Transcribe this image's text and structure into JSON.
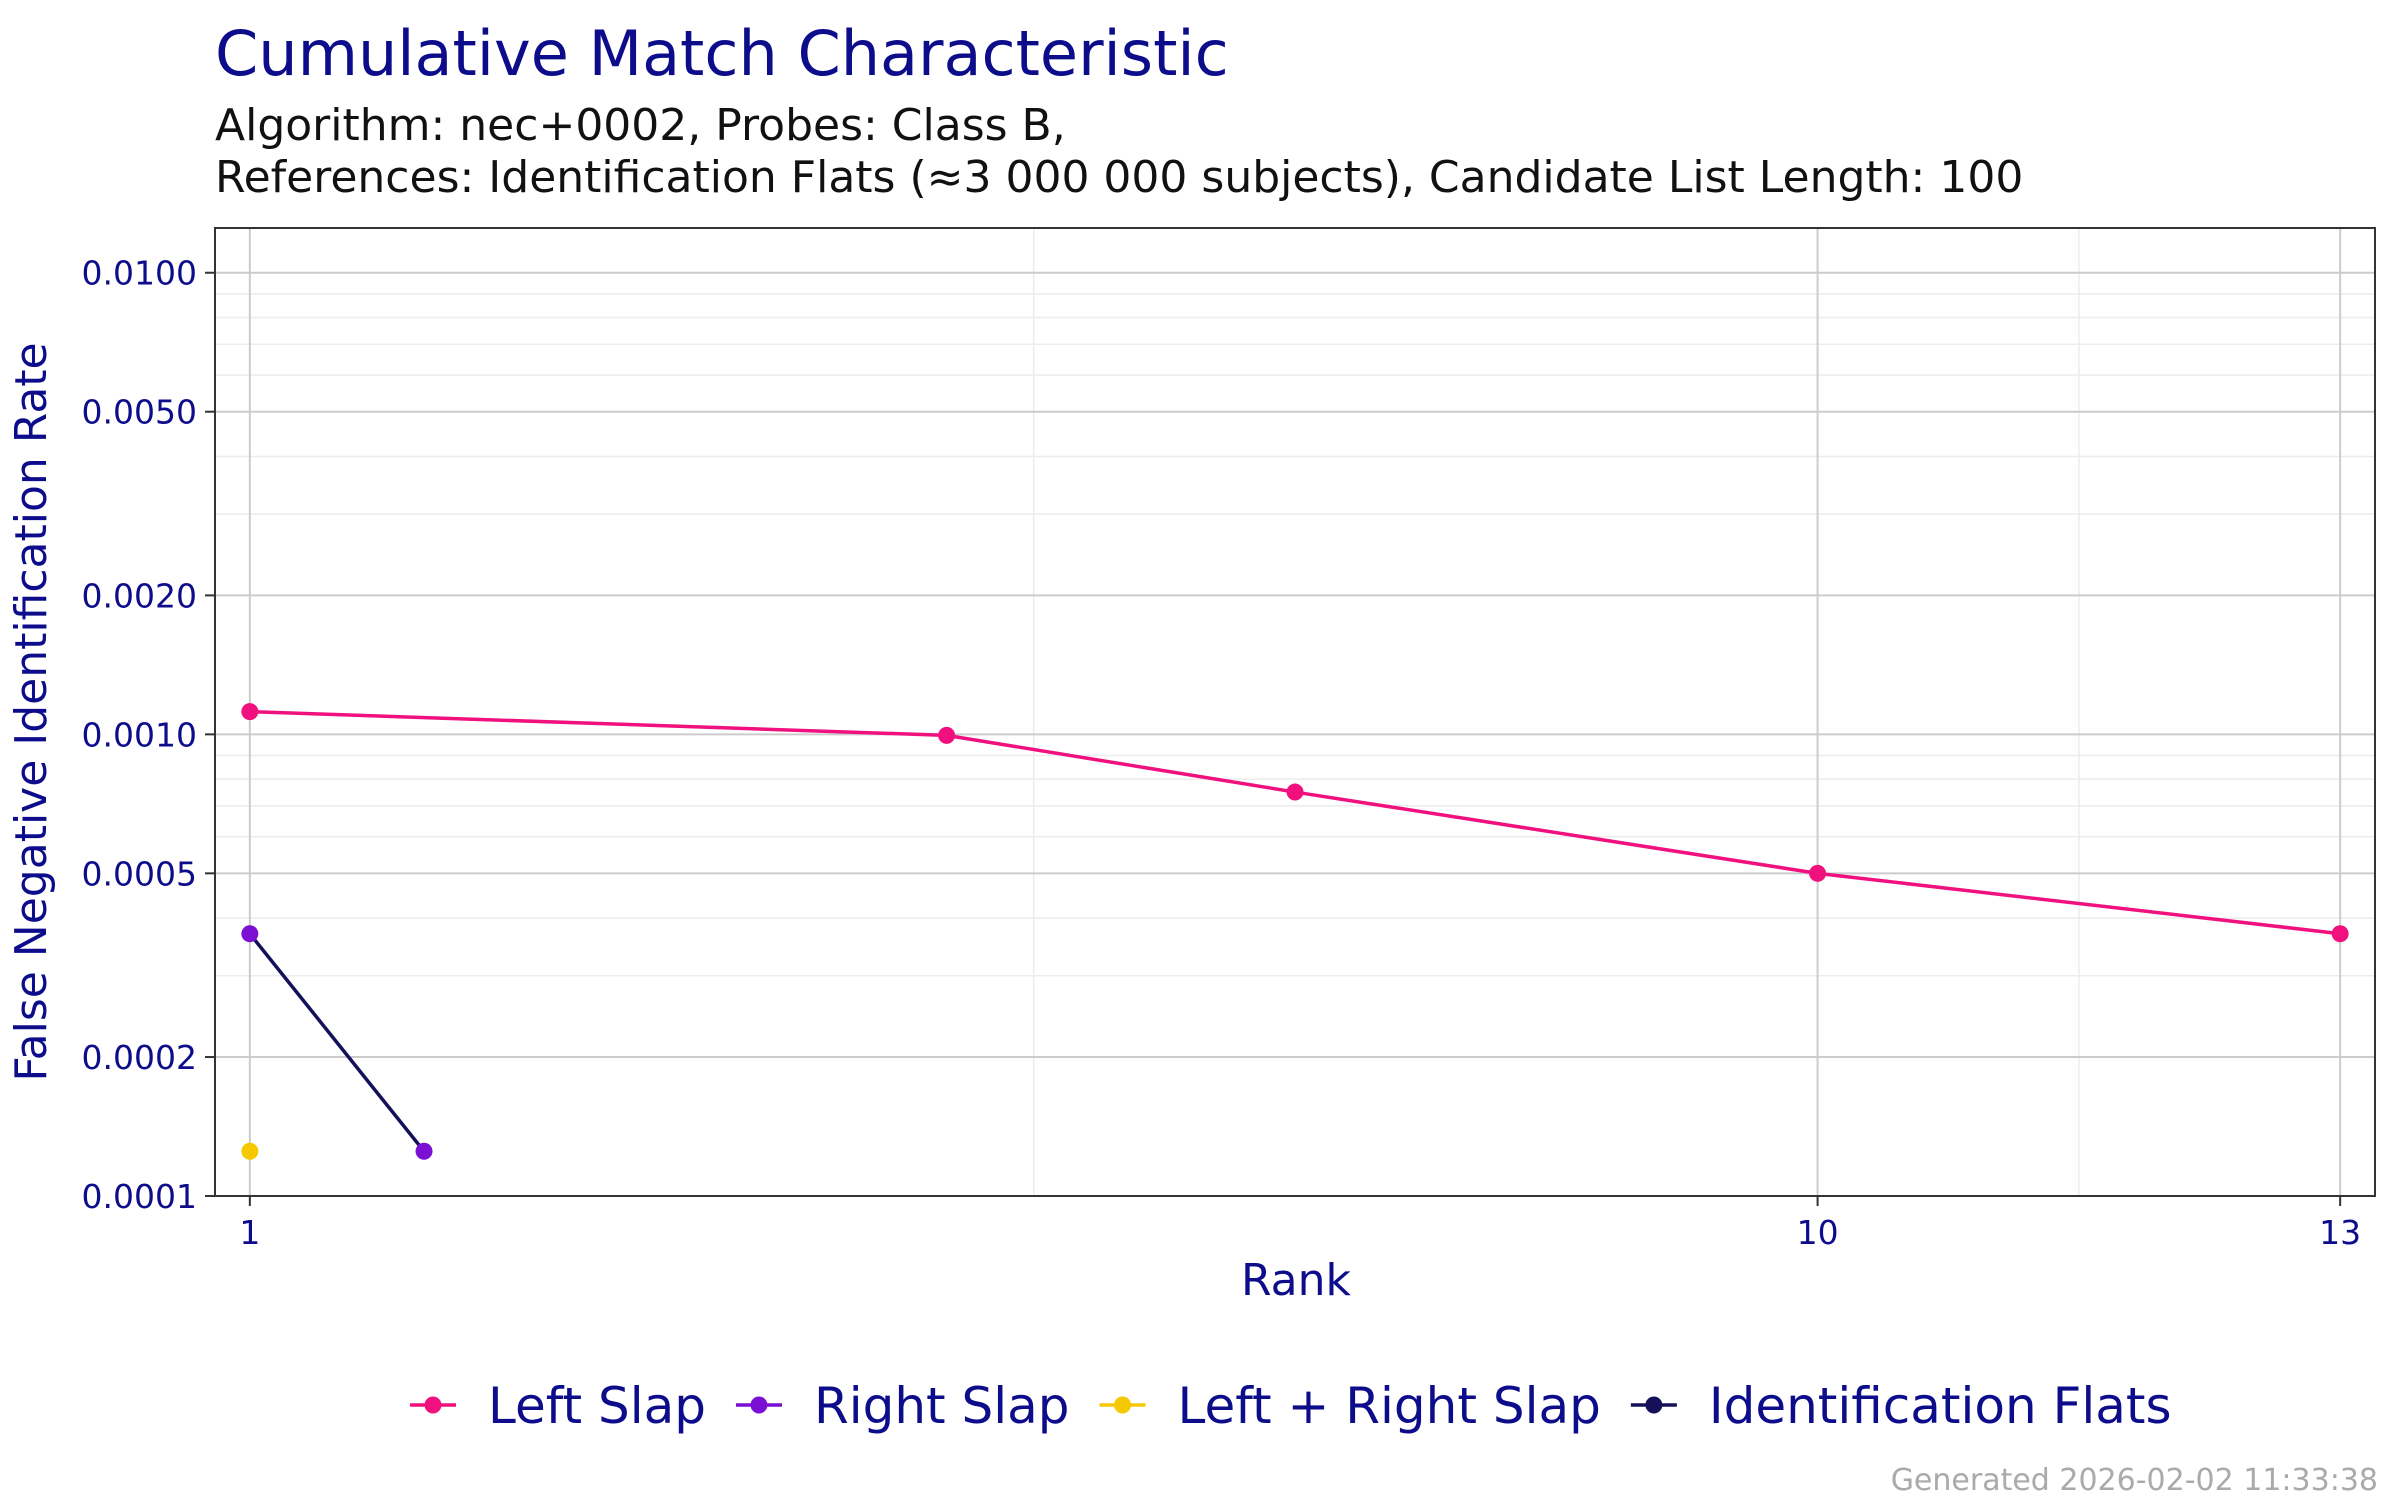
{
  "chart_data": {
    "type": "line",
    "title": "Cumulative Match Characteristic",
    "subtitle_lines": [
      "Algorithm: nec+0002, Probes: Class B,",
      "References: Identification Flats (≈3 000 000 subjects), Candidate List Length: 100"
    ],
    "xlabel": "Rank",
    "ylabel": "False Negative Identification Rate",
    "y_scale": "log",
    "xlim": [
      0.8,
      13.2
    ],
    "ylim": [
      0.0001,
      0.0125
    ],
    "x_ticks": [
      1,
      10,
      13
    ],
    "x_tick_labels": [
      "1",
      "10",
      "13"
    ],
    "y_ticks": [
      0.0001,
      0.0002,
      0.0005,
      0.001,
      0.002,
      0.005,
      0.01
    ],
    "y_tick_labels": [
      "0.0001",
      "0.0002",
      "0.0005",
      "0.0010",
      "0.0020",
      "0.0050",
      "0.0100"
    ],
    "grid": true,
    "legend_position": "bottom",
    "series": [
      {
        "name": "Left Slap",
        "color": "#f0117f",
        "line_color": "#f0117f",
        "x": [
          1,
          5,
          7,
          10,
          13
        ],
        "y": [
          0.00112,
          0.000995,
          0.00075,
          0.0005,
          0.00037
        ]
      },
      {
        "name": "Right Slap",
        "color": "#7b0fd2",
        "line_color": "#15105a",
        "x": [
          1,
          2
        ],
        "y": [
          0.00037,
          0.000125
        ]
      },
      {
        "name": "Left + Right Slap",
        "color": "#f5c800",
        "line_color": "#f5c800",
        "x": [
          1
        ],
        "y": [
          0.000125
        ]
      },
      {
        "name": "Identification Flats",
        "color": "#15105a",
        "line_color": "#15105a",
        "x": [],
        "y": []
      }
    ]
  },
  "footer": "Generated 2026-02-02 11:33:38"
}
